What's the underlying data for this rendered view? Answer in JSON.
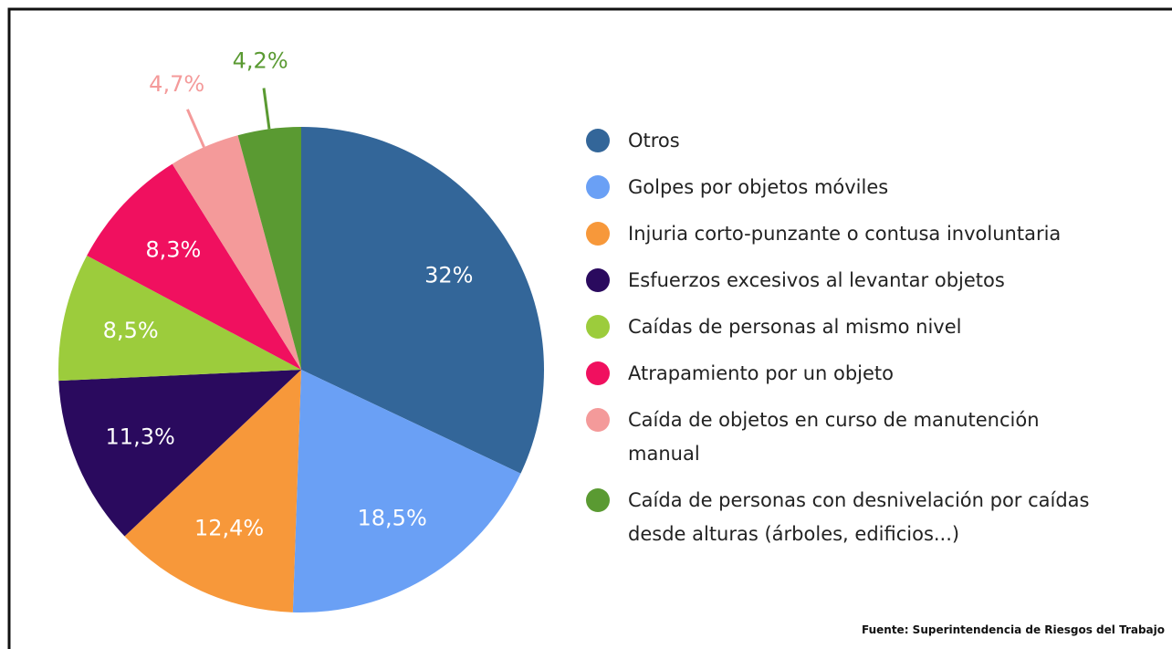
{
  "chart_data": {
    "type": "pie",
    "categories": [
      "Otros",
      "Golpes por objetos móviles",
      "Injuria corto-punzante o contusa involuntaria",
      "Esfuerzos excesivos al levantar objetos",
      "Caídas de personas al mismo nivel",
      "Atrapamiento por un objeto",
      "Caída de objetos en curso de manutención manual",
      "Caída de personas con desnivelación por caídas desde alturas (árboles, edificios...)"
    ],
    "values": [
      32,
      18.5,
      12.4,
      11.3,
      8.5,
      8.3,
      4.7,
      4.2
    ],
    "value_labels": [
      "32%",
      "18,5%",
      "12,4%",
      "11,3%",
      "8,5%",
      "8,3%",
      "4,7%",
      "4,2%"
    ],
    "colors": [
      "#336699",
      "#6aa0f5",
      "#f7983a",
      "#2a0a5e",
      "#9ccc3c",
      "#f0105f",
      "#f49a9a",
      "#5a9a32"
    ],
    "legend": "right",
    "source": "Fuente: Superintendencia de Riesgos del Trabajo"
  }
}
